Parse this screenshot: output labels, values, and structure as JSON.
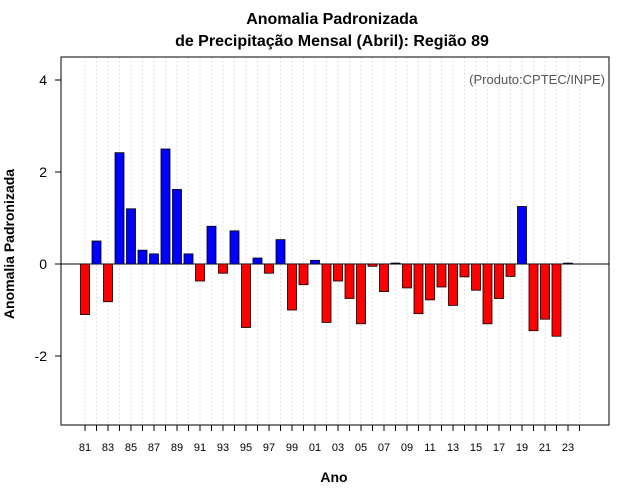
{
  "chart_data": {
    "type": "bar",
    "title_line1": "Anomalia Padronizada",
    "title_line2": "de Precipitação Mensal (Abril): Região 89",
    "xlabel": "Ano",
    "ylabel": "Anomalia Padronizada",
    "source": "(Produto:CPTEC/INPE)",
    "ylim": [
      -3.5,
      4.5
    ],
    "yticks": [
      "4",
      "2",
      "0",
      "-2"
    ],
    "ytick_values": [
      4,
      2,
      0,
      -2
    ],
    "grid": "vertical dotted",
    "positive_color": "#0000ff",
    "negative_color": "#ff0000",
    "categories": [
      "81",
      "82",
      "83",
      "84",
      "85",
      "86",
      "87",
      "88",
      "89",
      "90",
      "91",
      "92",
      "93",
      "94",
      "95",
      "96",
      "97",
      "98",
      "99",
      "00",
      "01",
      "02",
      "03",
      "04",
      "05",
      "06",
      "07",
      "08",
      "09",
      "10",
      "11",
      "12",
      "13",
      "14",
      "15",
      "16",
      "17",
      "18",
      "19",
      "20",
      "21",
      "22",
      "23",
      "24"
    ],
    "xtick_labels": [
      "81",
      "83",
      "85",
      "87",
      "89",
      "91",
      "93",
      "95",
      "97",
      "99",
      "01",
      "03",
      "05",
      "07",
      "09",
      "11",
      "13",
      "15",
      "17",
      "19",
      "21",
      "23"
    ],
    "values": [
      -1.1,
      0.5,
      -0.82,
      2.42,
      1.2,
      0.3,
      0.22,
      2.5,
      1.62,
      0.22,
      -0.37,
      0.82,
      -0.2,
      0.72,
      -1.38,
      0.13,
      -0.2,
      0.53,
      -1.0,
      -0.45,
      0.08,
      -1.27,
      -0.37,
      -0.75,
      -1.3,
      -0.05,
      -0.6,
      0.02,
      -0.52,
      -1.08,
      -0.78,
      -0.5,
      -0.9,
      -0.28,
      -0.57,
      -1.3,
      -0.75,
      -0.27,
      1.25,
      -1.45,
      -1.2,
      -1.57,
      0.02,
      0.0
    ]
  }
}
